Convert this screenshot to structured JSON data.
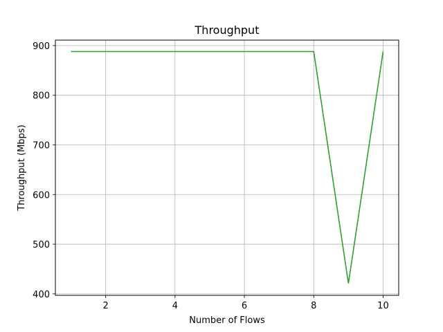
{
  "chart_data": {
    "type": "line",
    "title": "Throughput",
    "xlabel": "Number of Flows",
    "ylabel": "Throughput (Mbps)",
    "x": [
      1,
      2,
      3,
      4,
      5,
      6,
      7,
      8,
      9,
      10
    ],
    "series": [
      {
        "values": [
          888,
          888,
          888,
          888,
          888,
          888,
          888,
          888,
          421,
          888
        ],
        "color": "#2ca02c"
      }
    ],
    "xlim": [
      0.55,
      10.45
    ],
    "ylim": [
      397,
      911
    ],
    "xticks": [
      2,
      4,
      6,
      8,
      10
    ],
    "yticks": [
      400,
      500,
      600,
      700,
      800,
      900
    ],
    "grid": true
  }
}
